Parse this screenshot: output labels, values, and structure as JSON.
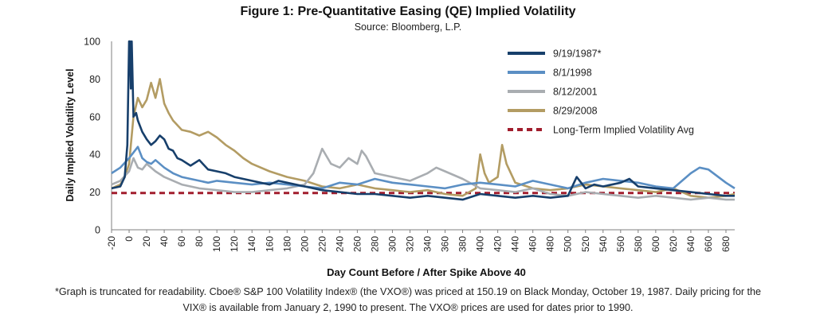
{
  "title": "Figure 1: Pre-Quantitative Easing (QE) Implied Volatility",
  "subtitle": "Source: Bloomberg, L.P.",
  "footnote": {
    "line1": "*Graph is truncated for readability. Cboe® S&P 100 Volatility Index® (the VXO®) was priced at 150.19 on Black Monday, October 19, 1987. Daily pricing for the",
    "line2": "VIX® is available from January 2, 1990 to present. The VXO® prices are used for dates prior to 1990."
  },
  "chart_data": {
    "type": "line",
    "xlabel": "Day Count Before / After Spike Above 40",
    "ylabel": "Daily Implied Volatility Level",
    "xlim": [
      -20,
      690
    ],
    "ylim": [
      0,
      100
    ],
    "x_ticks": [
      -20,
      0,
      20,
      40,
      60,
      80,
      100,
      120,
      140,
      160,
      180,
      200,
      220,
      240,
      260,
      280,
      300,
      320,
      340,
      360,
      380,
      400,
      420,
      440,
      460,
      480,
      500,
      520,
      540,
      560,
      580,
      600,
      620,
      640,
      660,
      680
    ],
    "y_ticks": [
      0,
      20,
      40,
      60,
      80,
      100
    ],
    "grid": false,
    "legend_position": "top-right",
    "series": [
      {
        "name": "9/19/1987*",
        "color": "#173f6b",
        "x": [
          -20,
          -10,
          -5,
          -2,
          0,
          1,
          2,
          3,
          5,
          8,
          10,
          15,
          20,
          25,
          30,
          35,
          40,
          45,
          50,
          55,
          60,
          70,
          80,
          90,
          100,
          110,
          120,
          130,
          140,
          150,
          160,
          170,
          180,
          190,
          200,
          220,
          240,
          260,
          280,
          300,
          320,
          340,
          360,
          380,
          400,
          420,
          440,
          460,
          480,
          500,
          510,
          520,
          530,
          540,
          560,
          570,
          580,
          600,
          620,
          640,
          660,
          680,
          690
        ],
        "y": [
          22,
          23,
          28,
          45,
          100,
          100,
          75,
          100,
          60,
          62,
          58,
          52,
          48,
          45,
          47,
          50,
          48,
          43,
          42,
          38,
          37,
          34,
          37,
          32,
          31,
          30,
          28,
          27,
          26,
          25,
          24,
          26,
          25,
          24,
          23,
          21,
          20,
          19,
          19,
          18,
          17,
          18,
          17,
          16,
          19,
          18,
          17,
          18,
          17,
          18,
          28,
          22,
          24,
          23,
          25,
          27,
          23,
          22,
          21,
          20,
          19,
          18,
          18
        ]
      },
      {
        "name": "8/1/1998",
        "color": "#5b8fc4",
        "x": [
          -20,
          -10,
          0,
          5,
          10,
          15,
          20,
          25,
          30,
          40,
          50,
          60,
          70,
          80,
          90,
          100,
          120,
          140,
          160,
          180,
          200,
          220,
          240,
          260,
          280,
          300,
          320,
          340,
          360,
          380,
          400,
          420,
          440,
          460,
          480,
          500,
          520,
          540,
          560,
          580,
          600,
          620,
          640,
          650,
          660,
          680,
          690
        ],
        "y": [
          30,
          33,
          38,
          41,
          44,
          38,
          36,
          35,
          37,
          33,
          30,
          28,
          27,
          26,
          25,
          26,
          25,
          24,
          25,
          24,
          23,
          22,
          25,
          24,
          27,
          25,
          24,
          23,
          22,
          24,
          25,
          24,
          23,
          26,
          24,
          22,
          25,
          27,
          26,
          25,
          23,
          22,
          30,
          33,
          32,
          25,
          22
        ]
      },
      {
        "name": "8/12/2001",
        "color": "#a9adb1",
        "x": [
          -20,
          -10,
          0,
          5,
          10,
          15,
          20,
          30,
          40,
          60,
          80,
          100,
          120,
          140,
          160,
          180,
          200,
          210,
          220,
          230,
          240,
          250,
          260,
          265,
          270,
          280,
          300,
          320,
          340,
          350,
          360,
          380,
          400,
          420,
          440,
          460,
          480,
          500,
          520,
          540,
          560,
          580,
          600,
          620,
          640,
          660,
          680,
          690
        ],
        "y": [
          24,
          26,
          31,
          38,
          33,
          32,
          35,
          31,
          28,
          24,
          22,
          21,
          20,
          20,
          21,
          22,
          24,
          30,
          43,
          35,
          33,
          38,
          35,
          42,
          39,
          30,
          28,
          26,
          30,
          33,
          31,
          27,
          22,
          21,
          20,
          22,
          19,
          18,
          20,
          19,
          18,
          17,
          18,
          17,
          16,
          17,
          16,
          16
        ]
      },
      {
        "name": "8/29/2008",
        "color": "#b39c63",
        "x": [
          -20,
          -10,
          -5,
          0,
          5,
          10,
          15,
          20,
          25,
          30,
          35,
          40,
          45,
          50,
          60,
          70,
          80,
          90,
          100,
          110,
          120,
          130,
          140,
          160,
          180,
          200,
          220,
          240,
          260,
          280,
          300,
          320,
          340,
          360,
          380,
          395,
          400,
          405,
          410,
          420,
          425,
          430,
          440,
          460,
          480,
          500,
          520,
          540,
          560,
          580,
          600,
          620,
          640,
          660,
          680,
          690
        ],
        "y": [
          22,
          24,
          28,
          35,
          60,
          70,
          65,
          69,
          78,
          70,
          80,
          67,
          62,
          58,
          53,
          52,
          50,
          52,
          49,
          45,
          42,
          38,
          35,
          31,
          28,
          26,
          23,
          22,
          24,
          22,
          21,
          20,
          21,
          19,
          18,
          22,
          40,
          30,
          25,
          28,
          45,
          35,
          25,
          22,
          21,
          22,
          24,
          23,
          22,
          21,
          20,
          22,
          18,
          17,
          18,
          19
        ]
      },
      {
        "name": "Long-Term Implied Volatility Avg",
        "color": "#a11d2d",
        "dashed": true,
        "x": [
          -20,
          690
        ],
        "y": [
          19.5,
          19.5
        ]
      }
    ]
  }
}
